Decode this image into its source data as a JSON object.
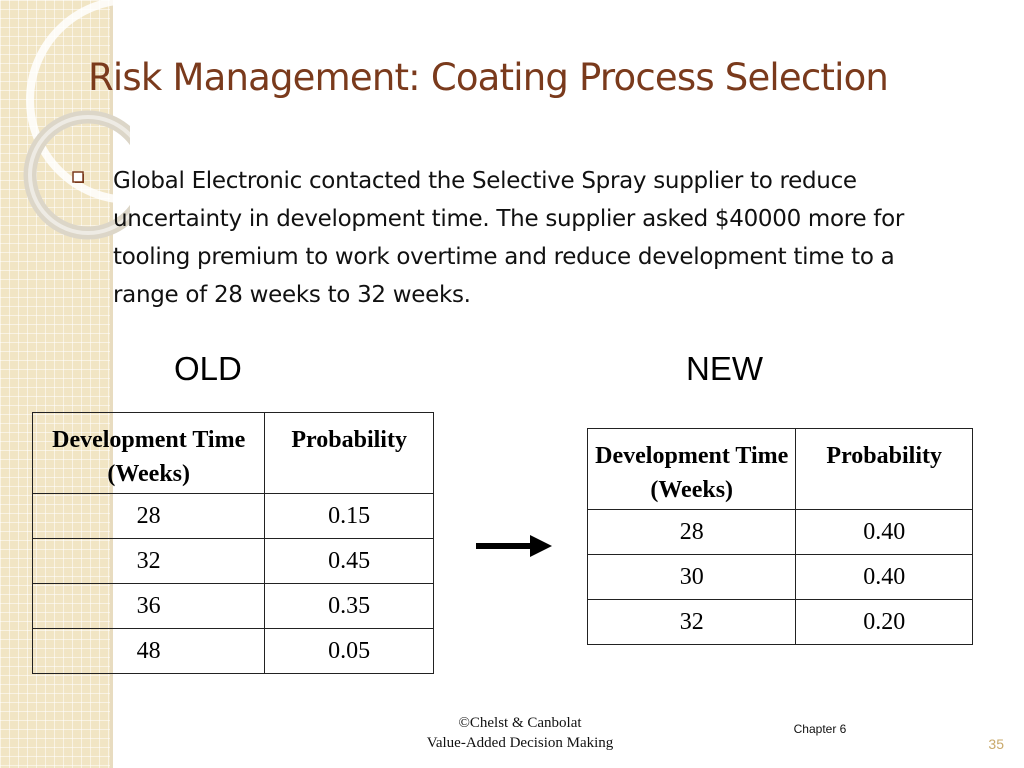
{
  "title": "Risk Management: Coating Process Selection",
  "bullet": "Global Electronic contacted the Selective Spray supplier to reduce uncertainty in development time. The supplier asked $40000 more for tooling premium to work overtime and reduce development time to a range of 28 weeks to 32 weeks.",
  "old_table": {
    "label": "OLD",
    "headers": [
      "Development Time (Weeks)",
      "Probability"
    ],
    "rows": [
      [
        "28",
        "0.15"
      ],
      [
        "32",
        "0.45"
      ],
      [
        "36",
        "0.35"
      ],
      [
        "48",
        "0.05"
      ]
    ]
  },
  "new_table": {
    "label": "NEW",
    "headers": [
      "Development Time (Weeks)",
      "Probability"
    ],
    "rows": [
      [
        "28",
        "0.40"
      ],
      [
        "30",
        "0.40"
      ],
      [
        "32",
        "0.20"
      ]
    ]
  },
  "footer": {
    "copyright": "©Chelst & Canbolat",
    "book": "Value-Added Decision Making",
    "chapter": "Chapter 6",
    "page": "35"
  },
  "colors": {
    "title": "#7a3a1c",
    "strip": "#f1e5c4",
    "page_number": "#c9a96a"
  },
  "icons": {
    "bullet": "checkbox-bullet-icon",
    "arrow": "right-arrow-icon"
  }
}
